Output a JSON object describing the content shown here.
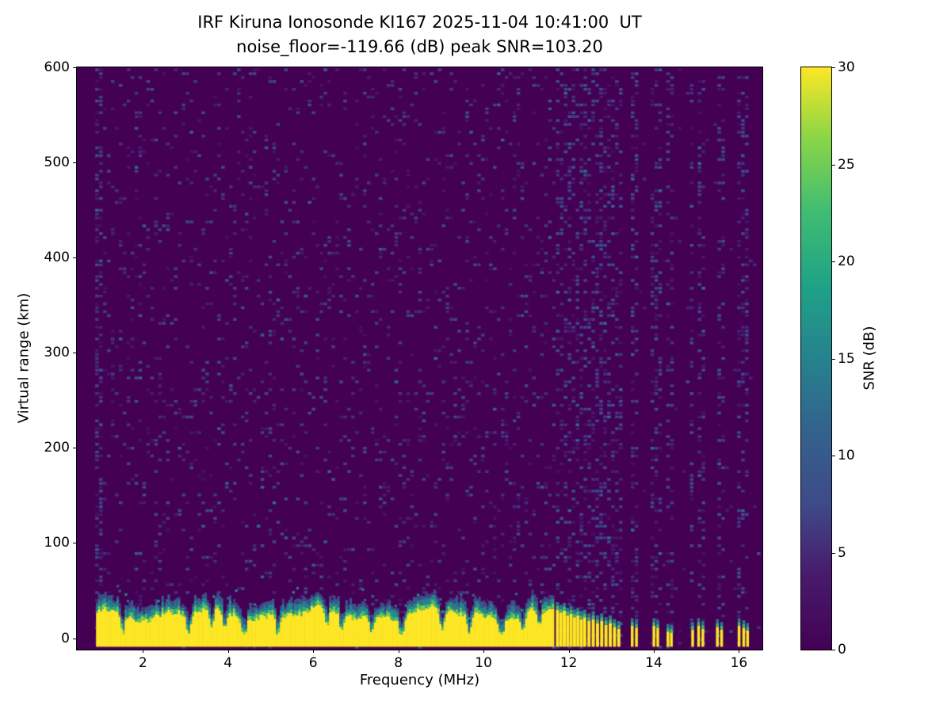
{
  "chart_data": {
    "type": "heatmap",
    "title": "IRF Kiruna Ionosonde KI167 2025-11-04 10:41:00  UT",
    "subtitle": "noise_floor=-119.66 (dB) peak SNR=103.20",
    "station": "IRF Kiruna Ionosonde KI167",
    "timestamp_ut": "2025-11-04 10:41:00",
    "noise_floor_db": -119.66,
    "peak_snr_db": 103.2,
    "xlabel": "Frequency (MHz)",
    "ylabel": "Virtual range (km)",
    "colorbar_label": "SNR (dB)",
    "colormap": "viridis",
    "xlim": [
      0.45,
      16.55
    ],
    "ylim": [
      -12,
      600
    ],
    "snr_lim": [
      0,
      30
    ],
    "xticks": [
      2,
      4,
      6,
      8,
      10,
      12,
      14,
      16
    ],
    "yticks": [
      0,
      100,
      200,
      300,
      400,
      500,
      600
    ],
    "colorbar_ticks": [
      0,
      5,
      10,
      15,
      20,
      25,
      30
    ],
    "viridis_stops": [
      [
        0.0,
        "#440154"
      ],
      [
        0.13,
        "#481b6d"
      ],
      [
        0.25,
        "#3e4a89"
      ],
      [
        0.38,
        "#33638d"
      ],
      [
        0.5,
        "#26828e"
      ],
      [
        0.62,
        "#1fa187"
      ],
      [
        0.75,
        "#3fbc73"
      ],
      [
        0.88,
        "#8bd646"
      ],
      [
        1.0,
        "#fde725"
      ]
    ],
    "background_snr_db": 0,
    "ground_echo_band": {
      "freq_start_mhz": 0.9,
      "freq_end_mhz": 11.65,
      "yellow_top_mean_km": 26,
      "yellow_top_range_km": [
        5,
        36
      ],
      "cap_top_max_km": 52,
      "notch_freqs_mhz": [
        1.5,
        3.05,
        3.6,
        3.9,
        4.35,
        5.15,
        6.3,
        6.65,
        7.35,
        8.05,
        9.0,
        9.65,
        10.4,
        10.9,
        11.3
      ]
    },
    "sparse_echo_columns": [
      {
        "f": 11.7,
        "top": 30
      },
      {
        "f": 11.78,
        "top": 27
      },
      {
        "f": 11.86,
        "top": 29
      },
      {
        "f": 11.94,
        "top": 24
      },
      {
        "f": 12.02,
        "top": 26
      },
      {
        "f": 12.1,
        "top": 22
      },
      {
        "f": 12.18,
        "top": 24
      },
      {
        "f": 12.26,
        "top": 20
      },
      {
        "f": 12.34,
        "top": 22
      },
      {
        "f": 12.44,
        "top": 18
      },
      {
        "f": 12.54,
        "top": 20
      },
      {
        "f": 12.64,
        "top": 16
      },
      {
        "f": 12.74,
        "top": 18
      },
      {
        "f": 12.84,
        "top": 14
      },
      {
        "f": 12.94,
        "top": 16
      },
      {
        "f": 13.04,
        "top": 12
      },
      {
        "f": 13.14,
        "top": 10
      },
      {
        "f": 13.46,
        "top": 13
      },
      {
        "f": 13.56,
        "top": 11
      },
      {
        "f": 13.97,
        "top": 13
      },
      {
        "f": 14.06,
        "top": 11
      },
      {
        "f": 14.3,
        "top": 7
      },
      {
        "f": 14.38,
        "top": 6
      },
      {
        "f": 14.88,
        "top": 9
      },
      {
        "f": 15.02,
        "top": 13
      },
      {
        "f": 15.12,
        "top": 10
      },
      {
        "f": 15.46,
        "top": 12
      },
      {
        "f": 15.56,
        "top": 9
      },
      {
        "f": 15.97,
        "top": 13
      },
      {
        "f": 16.08,
        "top": 11
      },
      {
        "f": 16.17,
        "top": 8
      }
    ],
    "noise_stripe_tolerance_mhz": 0.05,
    "background_speckle": {
      "region_a_density": 0.1,
      "region_b_density": 0.012,
      "stripe_column_density": 0.3,
      "snr_range_db": [
        2,
        9
      ],
      "left_edge_dense_until_mhz": 0.98
    }
  }
}
